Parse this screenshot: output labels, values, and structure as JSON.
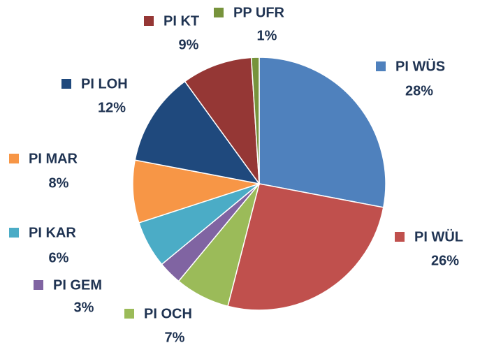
{
  "chart_data": {
    "type": "pie",
    "categories": [
      "PI WÜS",
      "PI WÜL",
      "PI OCH",
      "PI GEM",
      "PI KAR",
      "PI MAR",
      "PI LOH",
      "PI KT",
      "PP UFR"
    ],
    "values": [
      28,
      26,
      7,
      3,
      6,
      8,
      12,
      9,
      1
    ],
    "value_labels": [
      "28%",
      "26%",
      "7%",
      "3%",
      "6%",
      "8%",
      "12%",
      "9%",
      "1%"
    ],
    "colors": [
      "#4f81bd",
      "#c0504d",
      "#9bbb59",
      "#8064a2",
      "#4bacc6",
      "#f79646",
      "#1f497d",
      "#953735",
      "#77933c"
    ]
  }
}
